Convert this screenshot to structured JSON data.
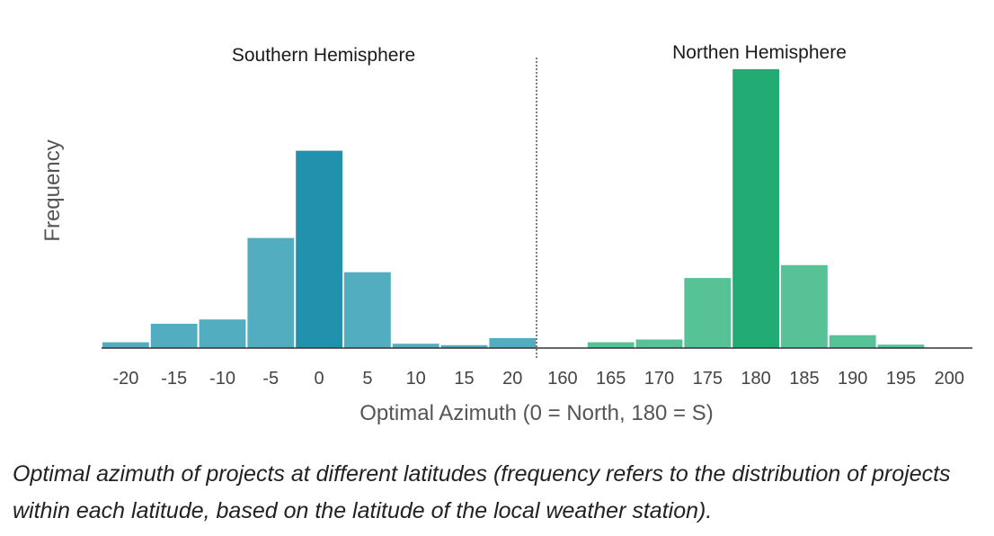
{
  "chart_data": {
    "type": "bar",
    "ylabel": "Frequency",
    "xlabel": "Optimal Azimuth (0 = North, 180 = S)",
    "panels": [
      {
        "title": "Southern Hemisphere",
        "color": "#53adc1",
        "highlight_color": "#2192ae",
        "highlight_category": "0",
        "categories": [
          "-20",
          "-15",
          "-10",
          "-5",
          "0",
          "5",
          "10",
          "15",
          "20"
        ],
        "values": [
          2,
          8.5,
          10,
          38.5,
          69,
          26.5,
          1.5,
          1,
          3.5
        ]
      },
      {
        "title": "Northen Hemisphere",
        "color": "#57c296",
        "highlight_color": "#22ab73",
        "highlight_category": "180",
        "categories": [
          "160",
          "165",
          "170",
          "175",
          "180",
          "185",
          "190",
          "195",
          "200"
        ],
        "values": [
          0,
          2,
          3,
          24.5,
          97.5,
          29,
          4.5,
          1.2,
          0
        ]
      }
    ],
    "ylim": [
      0,
      100
    ],
    "grid": false,
    "divider": "dotted vertical line between panels"
  },
  "caption": "Optimal azimuth of projects at different latitudes (frequency refers to the distribution of projects within each latitude, based on the latitude of the local weather station)."
}
